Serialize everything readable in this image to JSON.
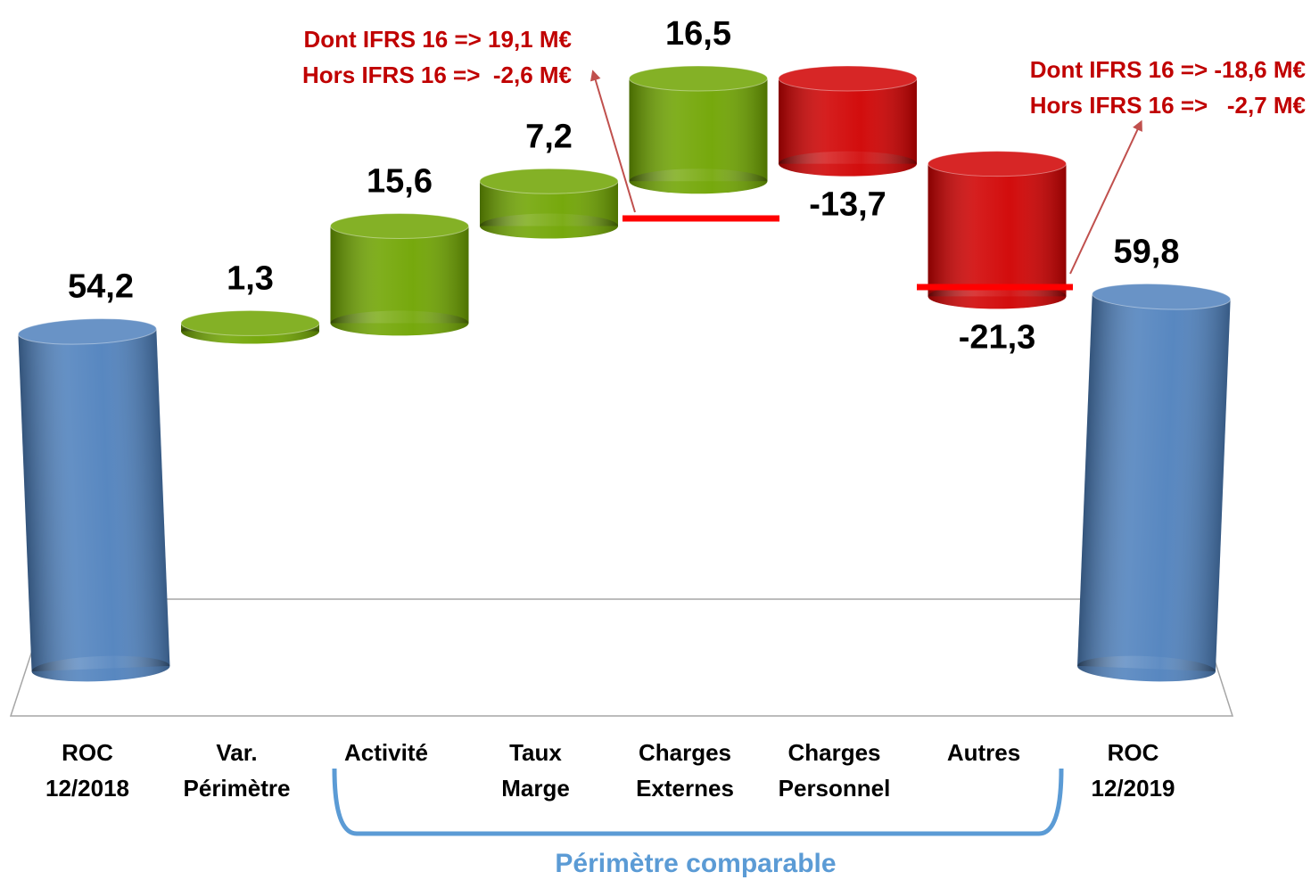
{
  "chart_data": {
    "type": "waterfall",
    "categories": [
      [
        "ROC",
        "12/2018"
      ],
      [
        "Var.",
        "Périmètre"
      ],
      [
        "Activité"
      ],
      [
        "Taux",
        "Marge"
      ],
      [
        "Charges",
        "Externes"
      ],
      [
        "Charges",
        "Personnel"
      ],
      [
        "Autres"
      ],
      [
        "ROC",
        "12/2019"
      ]
    ],
    "values": [
      54.2,
      1.3,
      15.6,
      7.2,
      16.5,
      -13.7,
      -21.3,
      59.8
    ],
    "value_labels": [
      "54,2",
      "1,3",
      "15,6",
      "7,2",
      "16,5",
      "-13,7",
      "-21,3",
      "59,8"
    ],
    "measure": [
      "total",
      "relative",
      "relative",
      "relative",
      "relative",
      "relative",
      "relative",
      "total"
    ],
    "colors": {
      "total": "#4f81bd",
      "increase": "#6fa400",
      "decrease": "#d00000"
    },
    "annotations": [
      {
        "lines": [
          "Dont IFRS 16 => 19,1 M€",
          "Hors IFRS 16 =>  -2,6 M€"
        ],
        "color": "#c00000"
      },
      {
        "lines": [
          "Dont IFRS 16 => -18,6 M€",
          "Hors IFRS 16 =>   -2,7 M€"
        ],
        "color": "#c00000"
      }
    ],
    "bracket_label": "Périmètre comparable"
  }
}
